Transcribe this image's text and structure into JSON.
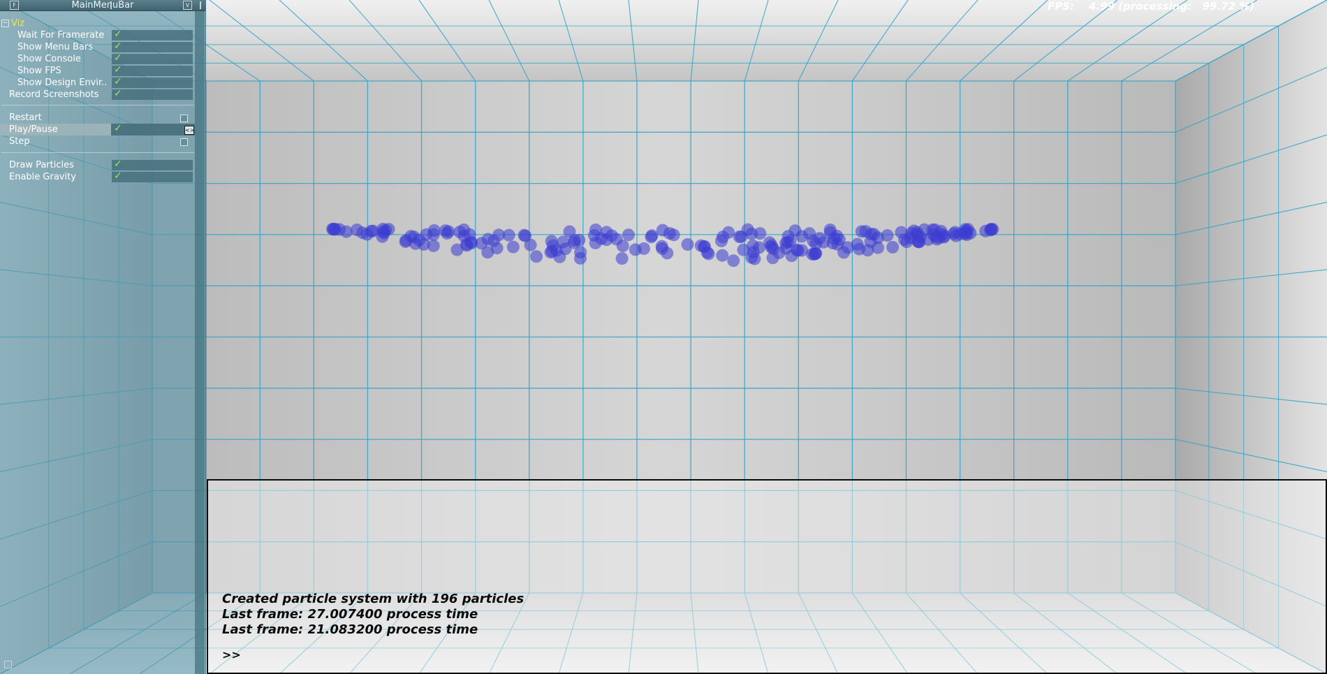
{
  "menu": {
    "title": "MainMenuBar",
    "viz_group_label": "Viz",
    "items": [
      {
        "label": "Wait For Framerate",
        "checked": true
      },
      {
        "label": "Show Menu Bars",
        "checked": true
      },
      {
        "label": "Show Console",
        "checked": true
      },
      {
        "label": "Show FPS",
        "checked": true
      },
      {
        "label": "Show Design Envir..",
        "checked": true
      },
      {
        "label": "Record Screenshots",
        "checked": true
      }
    ],
    "actions": [
      {
        "label": "Restart"
      },
      {
        "label": "Play/Pause",
        "checked": true
      },
      {
        "label": "Step"
      }
    ],
    "toggles": [
      {
        "label": "Draw Particles",
        "checked": true
      },
      {
        "label": "Enable Gravity",
        "checked": true
      }
    ]
  },
  "fps": {
    "text": "FPS:    4.99 (processing:   99.72 %)"
  },
  "console": {
    "lines": [
      "Created particle system with 196 particles",
      "Last frame: 27.007400 process time",
      "Last frame: 21.083200 process time"
    ],
    "prompt": ">>"
  },
  "colors": {
    "grid": "#2aa3c8",
    "particle": "#3c3cd2",
    "panel": "#5c96a8",
    "check": "#8cf25a"
  },
  "icons": [
    "checkmark-icon",
    "collapse-icon",
    "radio-box-icon",
    "resize-grip-icon"
  ]
}
